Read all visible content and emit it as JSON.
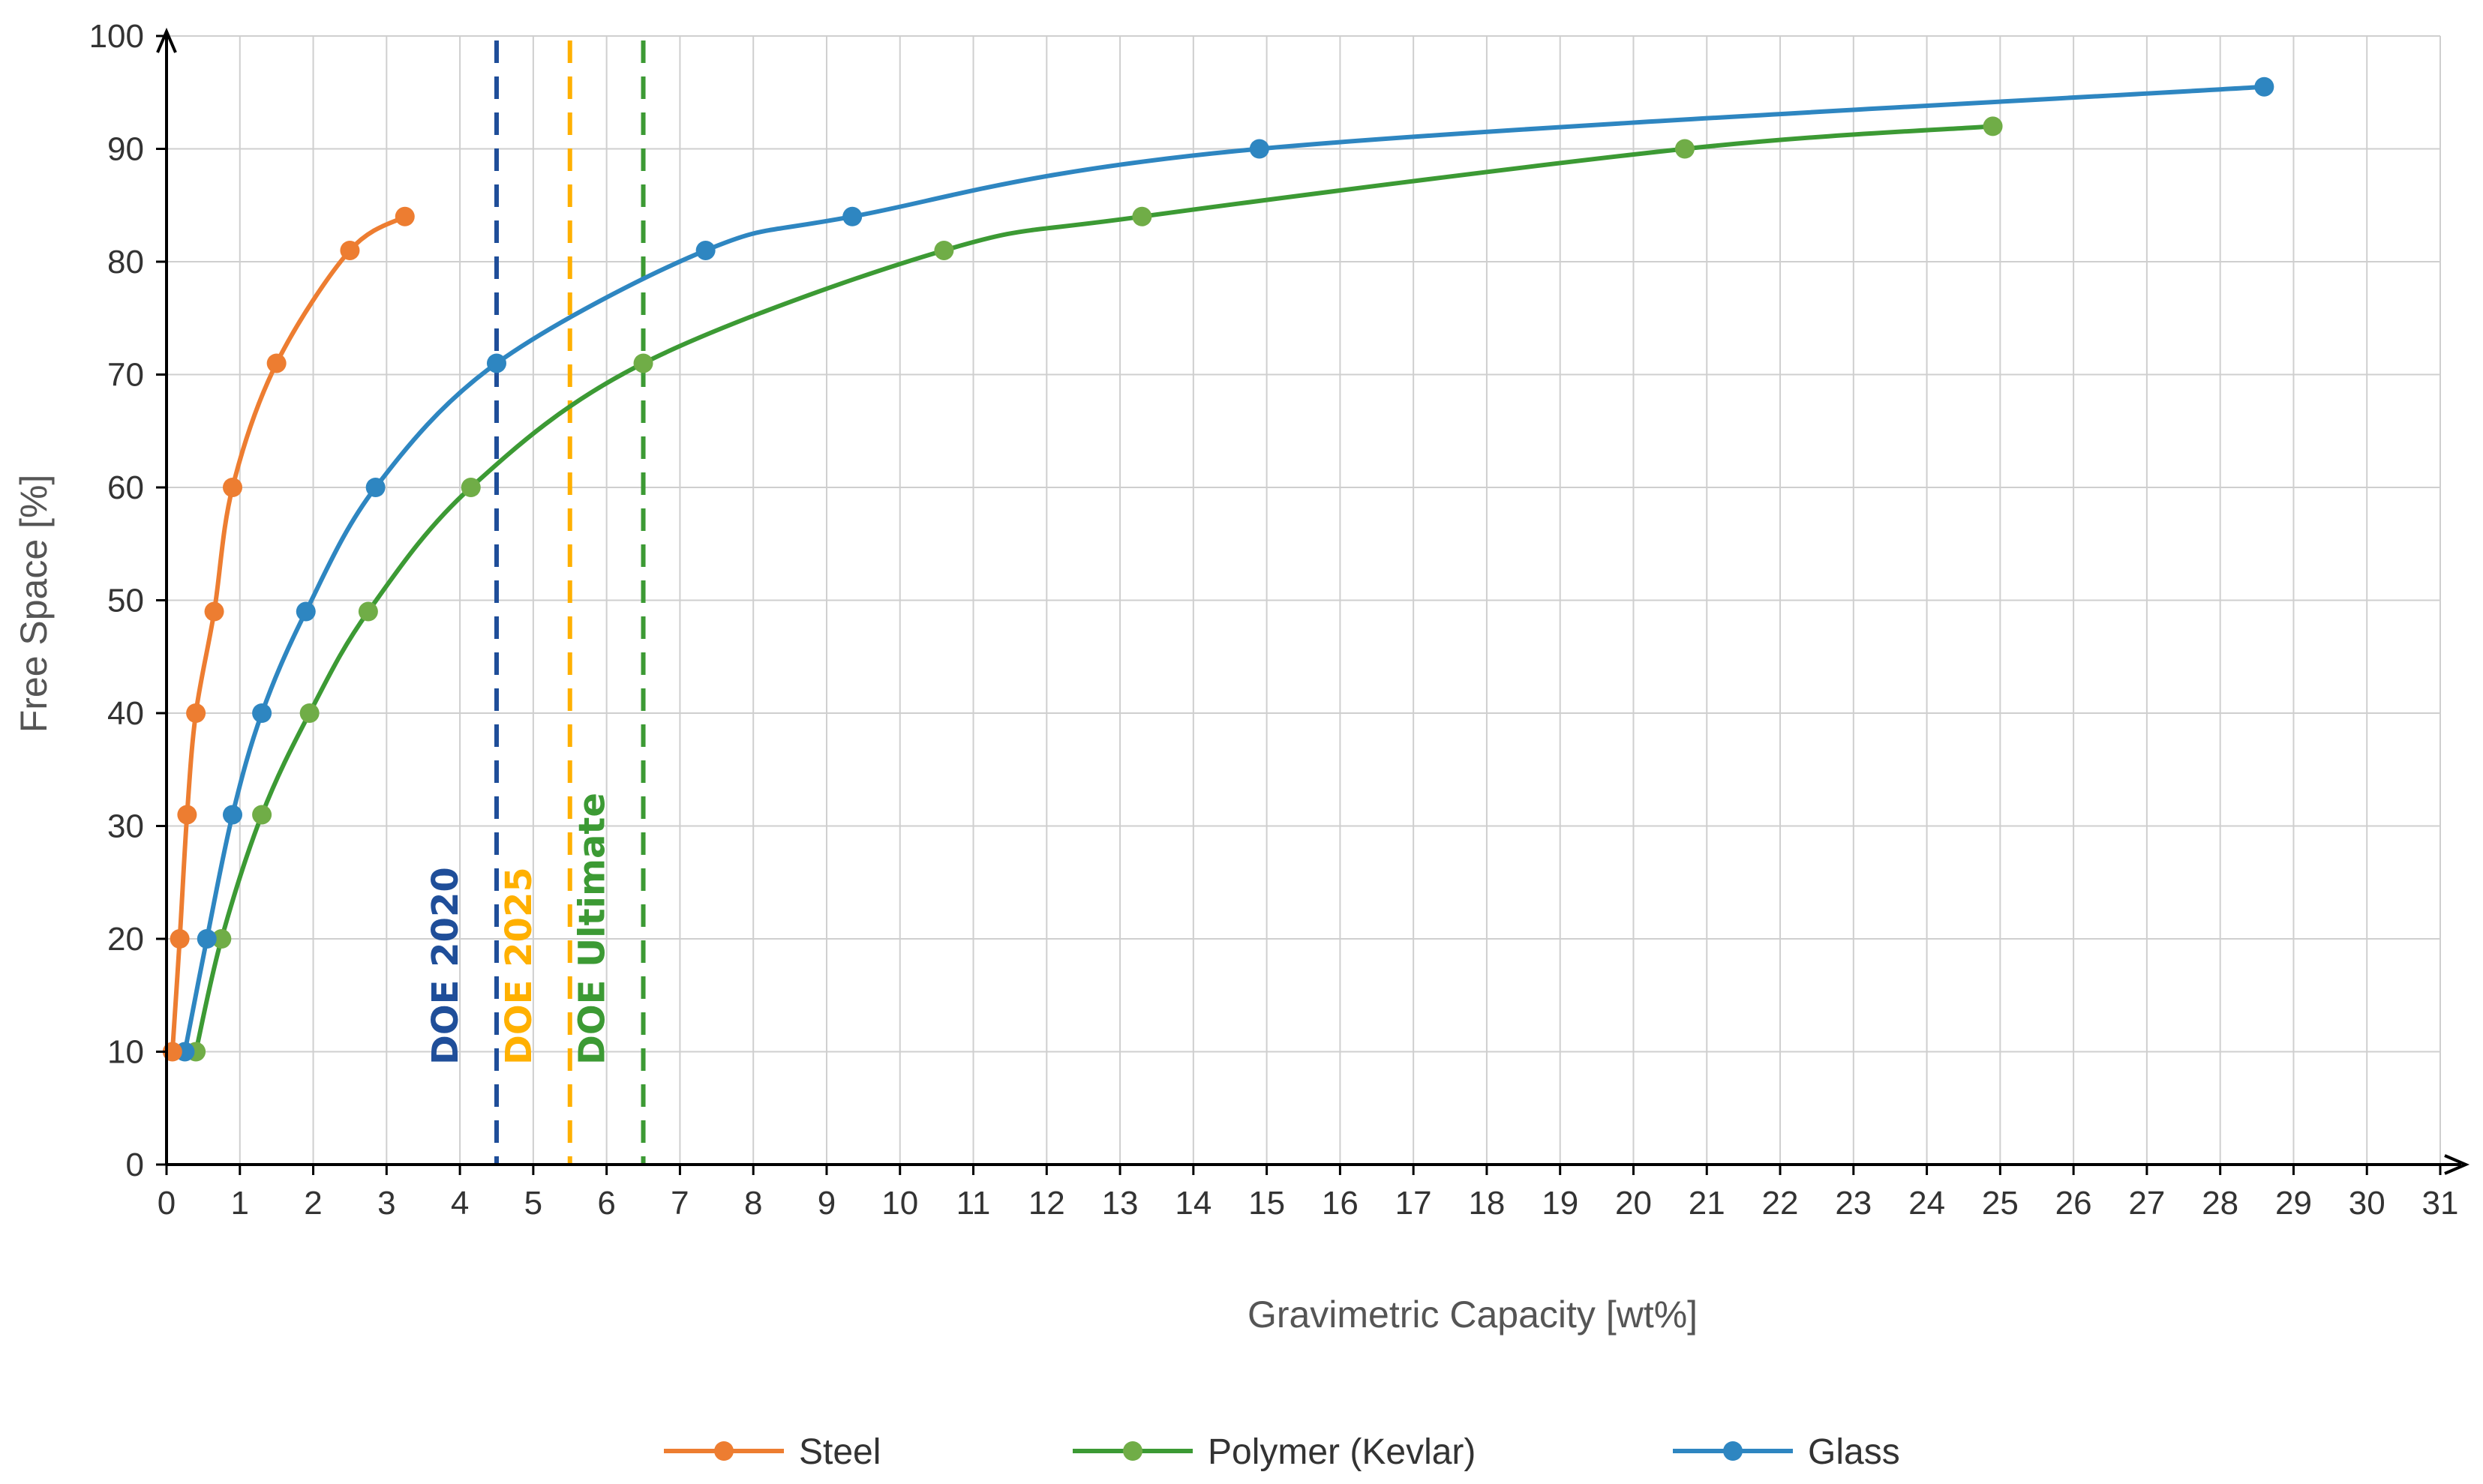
{
  "chart_data": {
    "type": "line",
    "title": "",
    "xlabel": "Gravimetric Capacity [wt%]",
    "ylabel": "Free Space [%]",
    "xlim": [
      0,
      31
    ],
    "ylim": [
      0,
      100
    ],
    "xticks": [
      "0",
      "1",
      "2",
      "3",
      "4",
      "5",
      "6",
      "7",
      "8",
      "9",
      "10",
      "11",
      "12",
      "13",
      "14",
      "15",
      "16",
      "17",
      "18",
      "19",
      "20",
      "21",
      "22",
      "23",
      "24",
      "25",
      "26",
      "27",
      "28",
      "29",
      "30",
      "31"
    ],
    "yticks": [
      "0",
      "10",
      "20",
      "30",
      "40",
      "50",
      "60",
      "70",
      "80",
      "90",
      "100"
    ],
    "grid": true,
    "legend_position": "bottom",
    "series": [
      {
        "name": "Steel",
        "color": "#ED7D31",
        "points": [
          [
            0.08,
            10
          ],
          [
            0.18,
            20
          ],
          [
            0.28,
            31
          ],
          [
            0.4,
            40
          ],
          [
            0.65,
            49
          ],
          [
            0.9,
            60
          ],
          [
            1.5,
            71
          ],
          [
            2.5,
            81
          ],
          [
            3.25,
            84
          ]
        ]
      },
      {
        "name": "Polymer (Kevlar)",
        "color": "#3C9A34",
        "marker_color": "#70AD47",
        "points": [
          [
            0.4,
            10
          ],
          [
            0.75,
            20
          ],
          [
            1.3,
            31
          ],
          [
            1.95,
            40
          ],
          [
            2.75,
            49
          ],
          [
            4.15,
            60
          ],
          [
            6.5,
            71
          ],
          [
            10.6,
            81
          ],
          [
            13.3,
            84
          ],
          [
            20.7,
            90
          ],
          [
            24.9,
            92
          ]
        ]
      },
      {
        "name": "Glass",
        "color": "#2E86C1",
        "marker_color": "#2E86C1",
        "points": [
          [
            0.25,
            10
          ],
          [
            0.55,
            20
          ],
          [
            0.9,
            31
          ],
          [
            1.3,
            40
          ],
          [
            1.9,
            49
          ],
          [
            2.85,
            60
          ],
          [
            4.5,
            71
          ],
          [
            7.35,
            81
          ],
          [
            9.35,
            84
          ],
          [
            14.9,
            90
          ],
          [
            28.6,
            95.5
          ]
        ]
      }
    ],
    "reference_lines": [
      {
        "label": "DOE 2020",
        "x": 4.5,
        "color": "#1F4E99"
      },
      {
        "label": "DOE 2025",
        "x": 5.5,
        "color": "#FFB000"
      },
      {
        "label": "DOE Ultimate",
        "x": 6.5,
        "color": "#3C9A34"
      }
    ]
  }
}
